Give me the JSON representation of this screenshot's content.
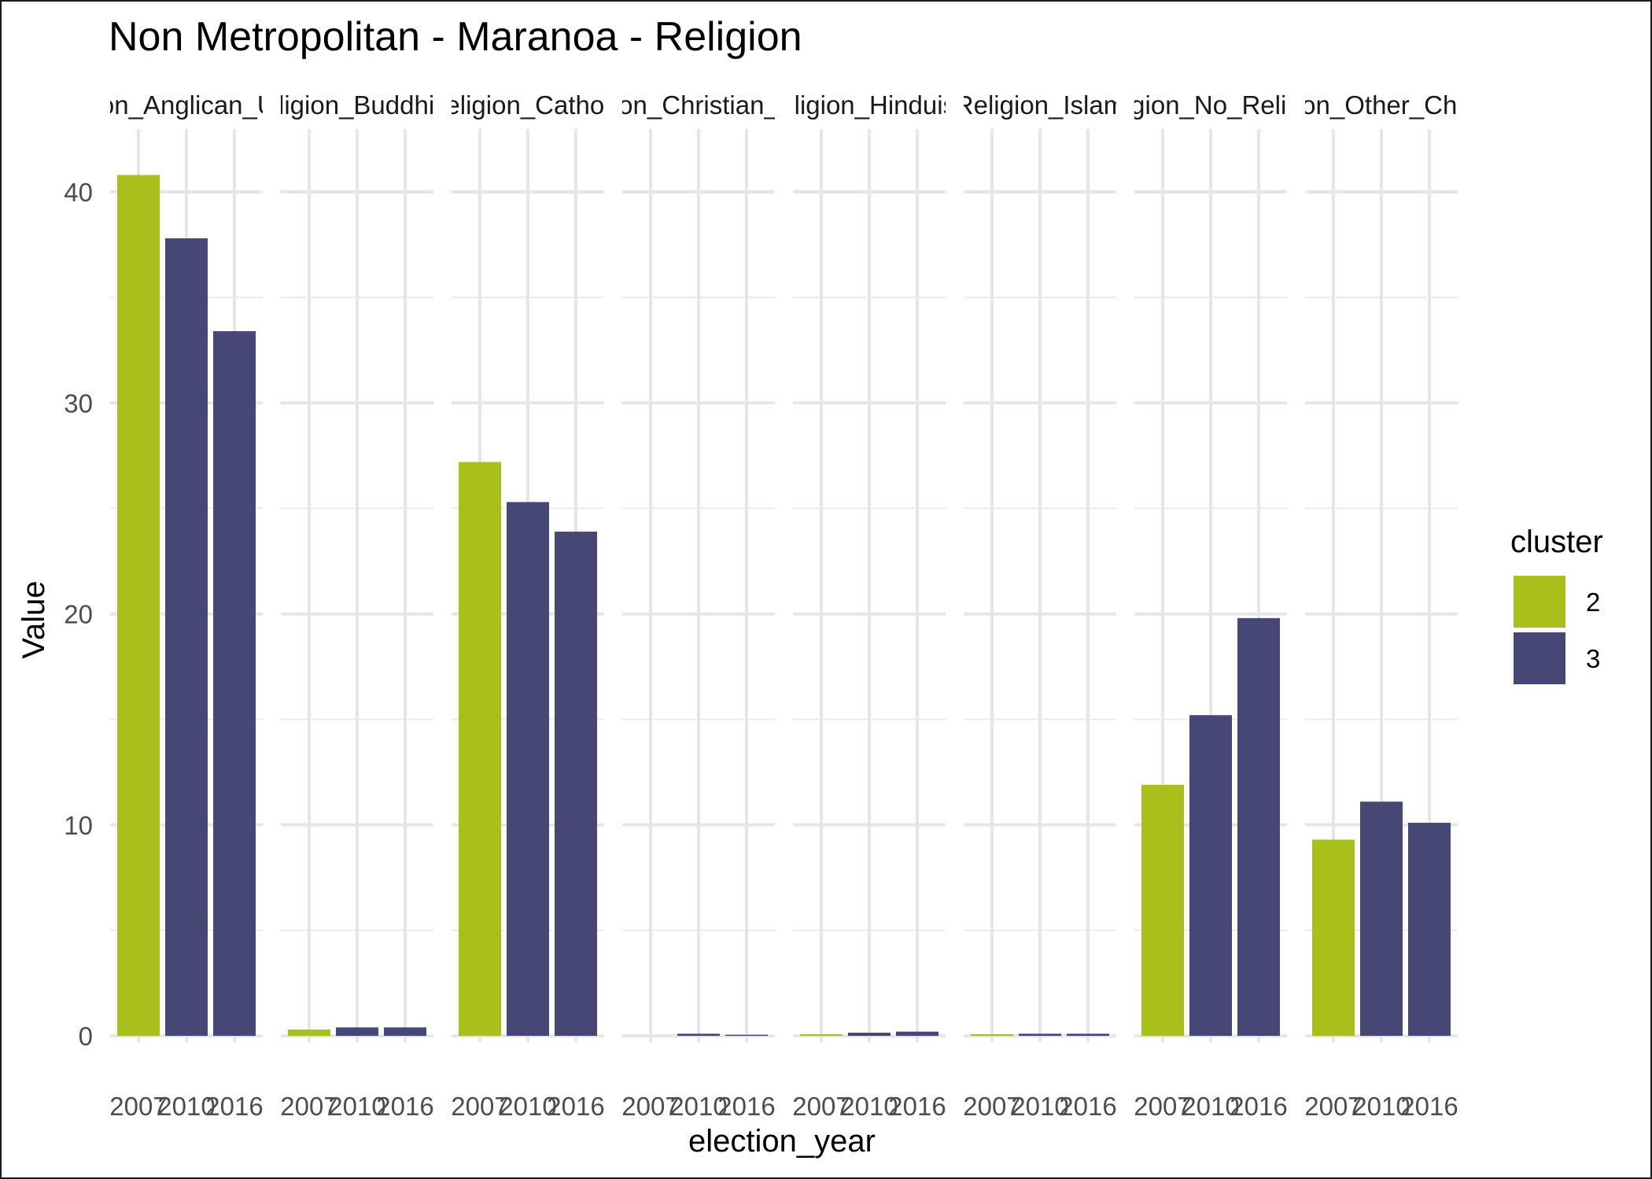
{
  "title": "Non Metropolitan - Maranoa - Religion",
  "chart_data": {
    "type": "bar",
    "facet_labels": [
      "Religion_Anglican_Uniting",
      "Religion_Buddhism",
      "Religion_Catholic",
      "Religion_Christian_Other",
      "Religion_Hinduism",
      "Religion_Islam",
      "Religion_No_Religion",
      "Religion_Other_Christian"
    ],
    "categories": [
      "2007",
      "2010",
      "2016"
    ],
    "cluster_by_year": [
      "2",
      "3",
      "3"
    ],
    "values": [
      [
        40.8,
        37.8,
        33.4
      ],
      [
        0.3,
        0.4,
        0.4
      ],
      [
        27.2,
        25.3,
        23.9
      ],
      [
        0.0,
        0.1,
        0.05
      ],
      [
        0.08,
        0.15,
        0.2
      ],
      [
        0.08,
        0.1,
        0.1
      ],
      [
        11.9,
        15.2,
        19.8
      ],
      [
        9.3,
        11.1,
        10.1
      ]
    ],
    "xlabel": "election_year",
    "ylabel": "Value",
    "ylim": [
      0,
      42
    ],
    "y_ticks": [
      0,
      10,
      20,
      30,
      40
    ],
    "grid": true,
    "legend": {
      "title": "cluster",
      "placement": "right",
      "items": [
        {
          "label": "2",
          "color": "#a9c01c"
        },
        {
          "label": "3",
          "color": "#474775"
        }
      ]
    }
  }
}
